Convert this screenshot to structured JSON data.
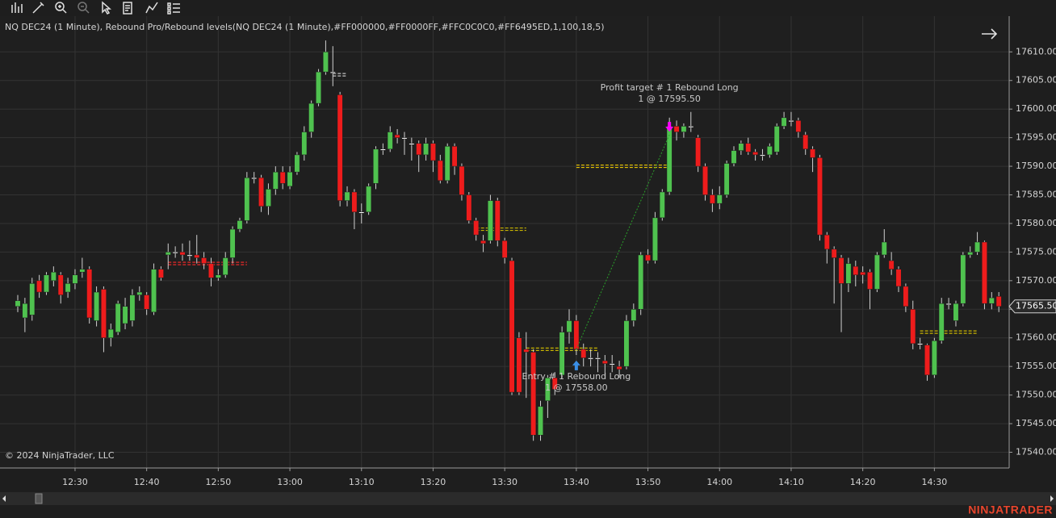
{
  "chart_data": {
    "type": "candlestick",
    "title": "NQ DEC24 (1 Minute), Rebound Pro/Rebound levels(NQ DEC24 (1 Minute),#FF000000,#FF0000FF,#FFC0C0C0,#FF6495ED,1,100,18,5)",
    "copyright": "© 2024 NinjaTrader, LLC",
    "brand": "NINJATRADER",
    "categories": [
      null,
      null,
      null,
      null,
      null,
      null,
      null,
      null,
      "12:30",
      null,
      null,
      null,
      null,
      null,
      null,
      null,
      null,
      null,
      "12:40",
      null,
      null,
      null,
      null,
      null,
      null,
      null,
      null,
      null,
      "12:50",
      null,
      null,
      null,
      null,
      null,
      null,
      null,
      null,
      null,
      "13:00",
      null,
      null,
      null,
      null,
      null,
      null,
      null,
      null,
      null,
      "13:10",
      null,
      null,
      null,
      null,
      null,
      null,
      null,
      null,
      null,
      "13:20",
      null,
      null,
      null,
      null,
      null,
      null,
      null,
      null,
      null,
      "13:30",
      null,
      null,
      null,
      null,
      null,
      null,
      null,
      null,
      null,
      "13:40",
      null,
      null,
      null,
      null,
      null,
      null,
      null,
      null,
      null,
      "13:50",
      null,
      null,
      null,
      null,
      null,
      null,
      null,
      null,
      null,
      "14:00",
      null,
      null,
      null,
      null,
      null,
      null,
      null,
      null,
      null,
      "14:10",
      null,
      null,
      null,
      null,
      null,
      null,
      null,
      null,
      null,
      "14:20",
      null,
      null,
      null,
      null,
      null,
      null,
      null,
      null,
      null,
      "14:30",
      null,
      null,
      null,
      null,
      null,
      null,
      null,
      null,
      null
    ],
    "open": [
      17565.5,
      17563.5,
      17564,
      17570,
      17568,
      17570,
      17571,
      17568,
      17569.5,
      17571.5,
      17572,
      17563,
      17568.5,
      17560,
      17561,
      17562.5,
      17563,
      17567.5,
      17567.5,
      17564.5,
      17572,
      17574.5,
      17575,
      17575,
      17574.5,
      17574.5,
      17574,
      17573,
      17570.5,
      17571,
      17574,
      17579,
      17580.5,
      17588,
      17588,
      17583,
      17586,
      17589,
      17586.5,
      17589,
      17592,
      17596,
      17601,
      17606.5,
      17606.5,
      17602.5,
      17584,
      17585.5,
      17582,
      17582,
      17587,
      17593,
      17593,
      17595.5,
      17595,
      17594,
      17594,
      17592,
      17594,
      17591,
      17587.5,
      17593.5,
      17590,
      17585,
      17580.5,
      17577,
      17577,
      17584,
      17577,
      17573.5,
      17560,
      17558,
      17557.5,
      17543,
      17549,
      17553,
      17553.5,
      17561,
      17563,
      17558,
      17556.5,
      17556.5,
      17556,
      17555.5,
      17555,
      17555,
      17563,
      17565,
      17574.5,
      17573.5,
      17581,
      17585.5,
      17597,
      17596,
      17597,
      17595,
      17590,
      17585,
      17583.5,
      17585,
      17590.5,
      17592.75,
      17594,
      17592.5,
      17592,
      17592,
      17592.5,
      17597,
      17598,
      17598,
      17595.5,
      17593,
      17591.5,
      17578,
      17575.5,
      17574,
      17569.5,
      17572.5,
      17571.5,
      17571.5,
      17568.5,
      17574.5,
      17573.5,
      17572,
      17569,
      17565,
      17559,
      17558.75,
      17553.5,
      17559.5,
      17566,
      17563,
      17566,
      17574.5,
      17575,
      17576.75,
      17566,
      17567.25
    ],
    "high": [
      17567.5,
      17567,
      17570.5,
      17571,
      17571.5,
      17572.5,
      17571.5,
      17570.5,
      17572,
      17574,
      17572.5,
      17569,
      17569,
      17562.5,
      17566.5,
      17567,
      17568.5,
      17569,
      17568,
      17573,
      17572.5,
      17576.5,
      17576,
      17576.5,
      17577,
      17578,
      17575,
      17574,
      17572,
      17575,
      17579.5,
      17581,
      17589,
      17589,
      17588.5,
      17587,
      17590,
      17590,
      17590,
      17592.5,
      17597,
      17601.5,
      17607,
      17612,
      17611,
      17603,
      17586.5,
      17586,
      17583.5,
      17587,
      17593.5,
      17594,
      17597,
      17596.5,
      17596,
      17595,
      17594.5,
      17595,
      17594.5,
      17592,
      17594,
      17594,
      17590.5,
      17585.5,
      17581,
      17578,
      17585,
      17584.5,
      17577.5,
      17574,
      17561,
      17561,
      17558,
      17549,
      17553.5,
      17554,
      17562,
      17565,
      17564,
      17559,
      17558,
      17557.5,
      17557,
      17557,
      17556,
      17564,
      17566,
      17575,
      17575.5,
      17582,
      17586,
      17598.5,
      17598,
      17597.5,
      17599.5,
      17595.5,
      17590.5,
      17586,
      17586.5,
      17591,
      17593.5,
      17594.5,
      17595,
      17593,
      17593,
      17594,
      17597.5,
      17599.5,
      17599.5,
      17598.5,
      17596,
      17593.5,
      17592,
      17578.5,
      17576,
      17574.5,
      17574,
      17573.5,
      17572.5,
      17572,
      17575,
      17579,
      17575,
      17572.5,
      17569.5,
      17566.5,
      17560,
      17559,
      17560,
      17567,
      17567,
      17566.5,
      17575,
      17576,
      17578.5,
      17577,
      17568,
      17568
    ],
    "low": [
      17564.5,
      17561,
      17563,
      17567,
      17567.5,
      17569,
      17566,
      17567,
      17568.5,
      17570.5,
      17562.5,
      17562,
      17557.5,
      17558.5,
      17560.5,
      17561.5,
      17562,
      17566.5,
      17564,
      17564,
      17570,
      17572,
      17574,
      17573.5,
      17573.5,
      17573,
      17572,
      17569,
      17570,
      17570.5,
      17573,
      17578.5,
      17580,
      17587,
      17582,
      17581.5,
      17585,
      17586,
      17586,
      17588.5,
      17591,
      17595,
      17600.5,
      17606,
      17604,
      17583,
      17583,
      17579,
      17580,
      17581.5,
      17586,
      17592,
      17592.5,
      17594,
      17592,
      17591,
      17589,
      17591,
      17589,
      17587,
      17587,
      17588.5,
      17584,
      17580,
      17577,
      17575,
      17576.5,
      17576,
      17573,
      17550,
      17550,
      17549.5,
      17542,
      17542,
      17546,
      17550,
      17553,
      17559,
      17557,
      17555,
      17555,
      17554,
      17553,
      17554,
      17553,
      17554.5,
      17562,
      17564,
      17573,
      17573,
      17580.5,
      17585,
      17594.5,
      17595,
      17596,
      17589,
      17584,
      17582,
      17582.5,
      17584.5,
      17590,
      17592,
      17592,
      17591,
      17591,
      17591.5,
      17592,
      17596.5,
      17597,
      17595,
      17592,
      17589,
      17577,
      17573,
      17566,
      17561,
      17568,
      17569,
      17569.5,
      17565,
      17568,
      17574,
      17571,
      17568,
      17564.5,
      17558,
      17558,
      17552.5,
      17553,
      17559,
      17565,
      17562,
      17565.5,
      17574,
      17574.5,
      17565,
      17565,
      17564.5
    ],
    "close": [
      17566.5,
      17566,
      17569.5,
      17568,
      17571,
      17571.5,
      17567.5,
      17569.5,
      17571,
      17572,
      17563.5,
      17568,
      17560,
      17561.5,
      17566,
      17565.5,
      17567.5,
      17568,
      17565,
      17572,
      17570.5,
      17575,
      17575,
      17574.5,
      17574.5,
      17574,
      17573,
      17570.5,
      17571,
      17574,
      17579,
      17580.5,
      17588,
      17588,
      17583,
      17586,
      17589,
      17587,
      17589,
      17592,
      17596,
      17601,
      17606.5,
      17610,
      17606.5,
      17584,
      17585.5,
      17582,
      17582,
      17586.5,
      17593,
      17593,
      17596,
      17595,
      17595,
      17594,
      17592,
      17594,
      17591,
      17587.5,
      17593.5,
      17590,
      17585,
      17580.5,
      17578,
      17576.5,
      17584,
      17577,
      17574,
      17550.5,
      17550.5,
      17557.5,
      17543,
      17548,
      17553,
      17551,
      17561,
      17563,
      17558,
      17556.5,
      17556.5,
      17556.5,
      17555.5,
      17555.5,
      17554.5,
      17563,
      17565,
      17574.5,
      17573.5,
      17581,
      17585.5,
      17597,
      17596,
      17597,
      17597,
      17590,
      17585,
      17583.5,
      17585,
      17590.5,
      17592.75,
      17594,
      17592.5,
      17592,
      17592,
      17593.5,
      17597,
      17598.5,
      17598,
      17596,
      17593,
      17591.5,
      17578,
      17575.5,
      17574,
      17569.5,
      17573,
      17571,
      17571,
      17568.5,
      17574.5,
      17576.75,
      17572,
      17569,
      17565.5,
      17559,
      17559,
      17553.5,
      17559.5,
      17566,
      17566,
      17566,
      17574.5,
      17575,
      17576.75,
      17566,
      17567,
      17565.5
    ],
    "up_color": "#4fc24f",
    "down_color": "#ee1c1c",
    "doji_color": "#ffffff",
    "wick_color": "#d0d0d0",
    "ylim": [
      17537.25,
      17616.25
    ],
    "yticks": [
      {
        "value": 17540,
        "label": "17540.00"
      },
      {
        "value": 17545,
        "label": "17545.00"
      },
      {
        "value": 17550,
        "label": "17550.00"
      },
      {
        "value": 17555,
        "label": "17555.00"
      },
      {
        "value": 17560,
        "label": "17560.00"
      },
      {
        "value": 17565,
        "label": "17565.00"
      },
      {
        "value": 17570,
        "label": "17570.00"
      },
      {
        "value": 17575,
        "label": "17575.00"
      },
      {
        "value": 17580,
        "label": "17580.00"
      },
      {
        "value": 17585,
        "label": "17585.00"
      },
      {
        "value": 17590,
        "label": "17590.00"
      },
      {
        "value": 17595,
        "label": "17595.00"
      },
      {
        "value": 17600,
        "label": "17600.00"
      },
      {
        "value": 17605,
        "label": "17605.00"
      },
      {
        "value": 17610,
        "label": "17610.00"
      }
    ],
    "grid": true,
    "last_price": {
      "value": 17565.5,
      "label": "17565.50"
    },
    "levels": [
      {
        "value": 17573,
        "from": 21,
        "to": 32,
        "color": "#ff2a2a"
      },
      {
        "value": 17606,
        "from": 44,
        "to": 46,
        "color": "#c0c0c0"
      },
      {
        "value": 17579,
        "from": 64,
        "to": 71,
        "color": "#c8b400"
      },
      {
        "value": 17558,
        "from": 71,
        "to": 81,
        "color": "#c8b400"
      },
      {
        "value": 17590,
        "from": 78,
        "to": 91,
        "color": "#e6c200"
      },
      {
        "value": 17561,
        "from": 126,
        "to": 134,
        "color": "#c8b400"
      }
    ],
    "annotations": [
      {
        "text": "Entry # 1 Rebound Long",
        "detail": "1 @ 17558.00",
        "index": 78,
        "price": 17558,
        "color": "#3a8ee6"
      },
      {
        "text": "Profit target # 1 Rebound Long",
        "detail": "1 @ 17595.50",
        "index": 91,
        "price": 17595.5,
        "color": "#ff00ff"
      }
    ]
  }
}
